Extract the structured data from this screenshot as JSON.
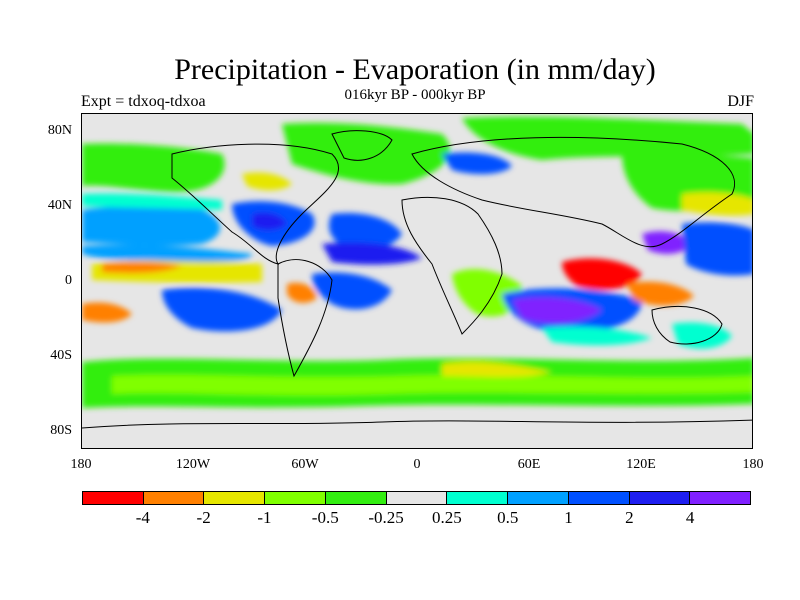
{
  "header": {
    "title": "Precipitation - Evaporation (in mm/day)",
    "subtitle": "016kyr BP - 000kyr BP",
    "experiment": "Expt = tdxoq-tdxoa",
    "season": "DJF"
  },
  "map": {
    "projection": "cylindrical equidistant",
    "background_color": "#e6e6e6",
    "y_ticks": [
      "80N",
      "40N",
      "0",
      "40S",
      "80S"
    ],
    "x_ticks": [
      "180",
      "120W",
      "60W",
      "0",
      "60E",
      "120E",
      "180"
    ]
  },
  "colorbar": {
    "colors": [
      "#ff0000",
      "#ff8000",
      "#e6e600",
      "#80ff00",
      "#33ee11",
      "#e6e6e6",
      "#00ffd0",
      "#00a0ff",
      "#0050ff",
      "#1e1ef0",
      "#8020ff"
    ],
    "labels": [
      "-4",
      "-2",
      "-1",
      "-0.5",
      "-0.25",
      "0.25",
      "0.5",
      "1",
      "2",
      "4"
    ]
  }
}
